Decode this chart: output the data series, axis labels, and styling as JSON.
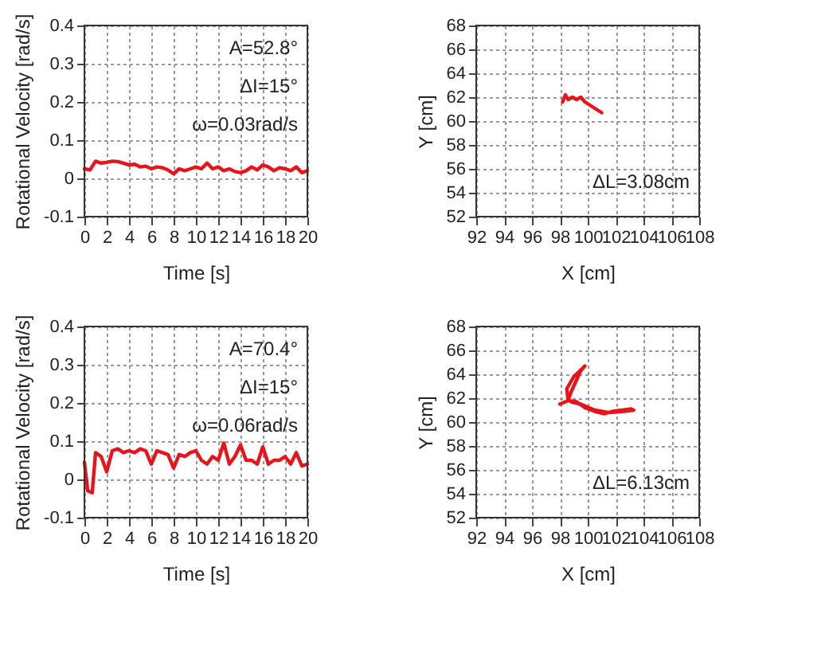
{
  "chart_data": [
    {
      "type": "line",
      "xlabel": "Time [s]",
      "ylabel": "Rotational Velocity [rad/s]",
      "annotations": [
        "A=52.8°",
        "ΔI=15°",
        "ω=0.03rad/s"
      ],
      "xlim": [
        0,
        20
      ],
      "xticks": [
        0,
        2,
        4,
        6,
        8,
        10,
        12,
        14,
        16,
        18,
        20
      ],
      "ylim": [
        -0.1,
        0.4
      ],
      "yticks": [
        -0.1,
        0,
        0.1,
        0.2,
        0.3,
        0.4
      ],
      "grid": true,
      "marker": "none",
      "line_style": "solid",
      "series": [
        {
          "color": "#e8141c",
          "x": [
            0,
            0.5,
            1,
            1.5,
            2,
            2.5,
            3,
            3.5,
            4,
            4.5,
            5,
            5.5,
            6,
            6.5,
            7,
            7.5,
            8,
            8.5,
            9,
            9.5,
            10,
            10.5,
            11,
            11.5,
            12,
            12.5,
            13,
            13.5,
            14,
            14.5,
            15,
            15.5,
            16,
            16.5,
            17,
            17.5,
            18,
            18.5,
            19,
            19.5,
            20
          ],
          "values": [
            0.025,
            0.022,
            0.045,
            0.04,
            0.042,
            0.045,
            0.044,
            0.04,
            0.035,
            0.037,
            0.03,
            0.032,
            0.025,
            0.03,
            0.028,
            0.022,
            0.012,
            0.025,
            0.02,
            0.025,
            0.03,
            0.025,
            0.04,
            0.025,
            0.03,
            0.02,
            0.025,
            0.018,
            0.015,
            0.02,
            0.03,
            0.022,
            0.035,
            0.03,
            0.02,
            0.028,
            0.025,
            0.02,
            0.03,
            0.015,
            0.02
          ]
        }
      ]
    },
    {
      "type": "line",
      "xlabel": "X [cm]",
      "ylabel": "Y [cm]",
      "annotations": [
        "ΔL=3.08cm"
      ],
      "xlim": [
        92,
        108
      ],
      "xticks": [
        92,
        94,
        96,
        98,
        100,
        102,
        104,
        106,
        108
      ],
      "ylim": [
        52,
        68
      ],
      "yticks": [
        52,
        54,
        56,
        58,
        60,
        62,
        64,
        66,
        68
      ],
      "grid": true,
      "marker": "none",
      "line_style": "solid",
      "series": [
        {
          "color": "#e8141c",
          "x": [
            98.2,
            98.4,
            98.6,
            98.9,
            99.2,
            99.5,
            99.8,
            100.2,
            100.6,
            101
          ],
          "values": [
            61.6,
            62.2,
            61.8,
            62.0,
            61.8,
            62.0,
            61.6,
            61.3,
            61.0,
            60.7
          ]
        }
      ]
    },
    {
      "type": "line",
      "xlabel": "Time [s]",
      "ylabel": "Rotational Velocity [rad/s]",
      "annotations": [
        "A=70.4°",
        "ΔI=15°",
        "ω=0.06rad/s"
      ],
      "xlim": [
        0,
        20
      ],
      "xticks": [
        0,
        2,
        4,
        6,
        8,
        10,
        12,
        14,
        16,
        18,
        20
      ],
      "ylim": [
        -0.1,
        0.4
      ],
      "yticks": [
        -0.1,
        0,
        0.1,
        0.2,
        0.3,
        0.4
      ],
      "grid": true,
      "marker": "none",
      "line_style": "solid",
      "series": [
        {
          "color": "#e8141c",
          "x": [
            0,
            0.3,
            0.7,
            1,
            1.5,
            2,
            2.5,
            3,
            3.5,
            4,
            4.5,
            5,
            5.5,
            6,
            6.5,
            7,
            7.5,
            8,
            8.5,
            9,
            9.5,
            10,
            10.5,
            11,
            11.5,
            12,
            12.5,
            13,
            13.5,
            14,
            14.5,
            15,
            15.5,
            16,
            16.5,
            17,
            17.5,
            18,
            18.5,
            19,
            19.5,
            20
          ],
          "values": [
            0.045,
            -0.03,
            -0.035,
            0.07,
            0.06,
            0.02,
            0.075,
            0.08,
            0.07,
            0.075,
            0.07,
            0.08,
            0.075,
            0.04,
            0.075,
            0.07,
            0.065,
            0.03,
            0.065,
            0.06,
            0.07,
            0.075,
            0.05,
            0.04,
            0.06,
            0.05,
            0.095,
            0.04,
            0.06,
            0.09,
            0.05,
            0.05,
            0.04,
            0.085,
            0.04,
            0.05,
            0.05,
            0.06,
            0.04,
            0.07,
            0.035,
            0.04
          ]
        }
      ]
    },
    {
      "type": "line",
      "xlabel": "X [cm]",
      "ylabel": "Y [cm]",
      "annotations": [
        "ΔL=6.13cm"
      ],
      "xlim": [
        92,
        108
      ],
      "xticks": [
        92,
        94,
        96,
        98,
        100,
        102,
        104,
        106,
        108
      ],
      "ylim": [
        52,
        68
      ],
      "yticks": [
        52,
        54,
        56,
        58,
        60,
        62,
        64,
        66,
        68
      ],
      "grid": true,
      "marker": "none",
      "line_style": "solid",
      "series": [
        {
          "color": "#e8141c",
          "x": [
            98,
            98.6,
            98.5,
            99,
            99.8,
            99.5,
            98.8,
            98.6,
            99.2,
            99.8,
            100.5,
            101.2,
            101.8,
            102.5,
            103.1,
            103.3,
            102.6,
            101.5,
            100.5,
            99.5,
            98.8
          ],
          "values": [
            61.5,
            61.8,
            62.8,
            63.8,
            64.7,
            64.3,
            62.5,
            61.8,
            61.7,
            61.2,
            60.9,
            60.7,
            60.9,
            61.0,
            61.1,
            61.0,
            60.9,
            60.8,
            61.0,
            61.5,
            61.7
          ]
        }
      ]
    }
  ]
}
